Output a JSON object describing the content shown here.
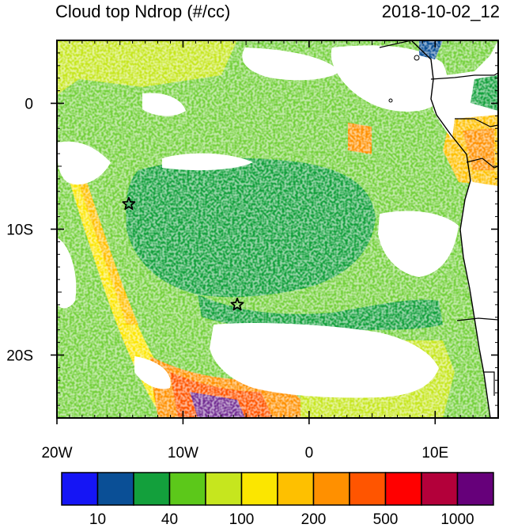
{
  "title": "Cloud top Ndrop (#/cc)",
  "timestamp": "2018-10-02_12",
  "lon_ticks": [
    {
      "lon": -20,
      "label": "20W"
    },
    {
      "lon": -10,
      "label": "10W"
    },
    {
      "lon": 0,
      "label": "0"
    },
    {
      "lon": 10,
      "label": "10E"
    }
  ],
  "lat_ticks": [
    {
      "lat": 0,
      "label": "0"
    },
    {
      "lat": -10,
      "label": "10S"
    },
    {
      "lat": -20,
      "label": "20S"
    }
  ],
  "extent": {
    "lon_min": -20,
    "lon_max": 15,
    "lat_min": -25,
    "lat_max": 5
  },
  "stars": [
    {
      "name": "star-marker-west",
      "lon": -14.3,
      "lat": -8.0
    },
    {
      "name": "star-marker-center",
      "lon": -5.7,
      "lat": -16.0
    }
  ],
  "colorbar": {
    "colors": [
      "#1515f5",
      "#0a4f96",
      "#13a03c",
      "#5cc81a",
      "#c6e61e",
      "#fbe600",
      "#fec000",
      "#ff9000",
      "#ff5500",
      "#ff0000",
      "#b3003a",
      "#66007a"
    ],
    "labels": [
      {
        "boundary": 1,
        "text": "10"
      },
      {
        "boundary": 3,
        "text": "40"
      },
      {
        "boundary": 5,
        "text": "100"
      },
      {
        "boundary": 7,
        "text": "200"
      },
      {
        "boundary": 9,
        "text": "500"
      },
      {
        "boundary": 11,
        "text": "1000"
      }
    ]
  }
}
